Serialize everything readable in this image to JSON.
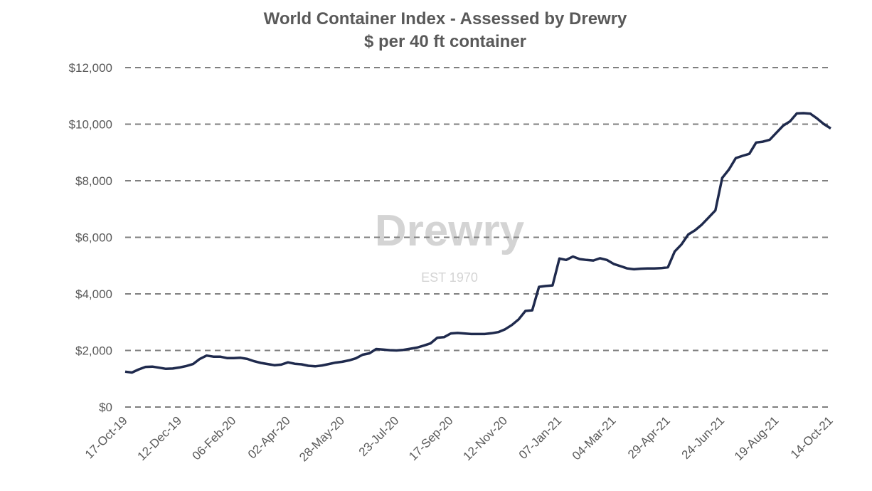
{
  "chart_data": {
    "type": "line",
    "title": "World Container Index - Assessed by Drewry",
    "subtitle": "$ per 40 ft container",
    "watermark": {
      "name": "Drewry",
      "est": "EST 1970"
    },
    "categories": [
      "17-Oct-19",
      null,
      null,
      null,
      null,
      null,
      null,
      null,
      "12-Dec-19",
      null,
      null,
      null,
      null,
      null,
      null,
      null,
      "06-Feb-20",
      null,
      null,
      null,
      null,
      null,
      null,
      null,
      "02-Apr-20",
      null,
      null,
      null,
      null,
      null,
      null,
      null,
      "28-May-20",
      null,
      null,
      null,
      null,
      null,
      null,
      null,
      "23-Jul-20",
      null,
      null,
      null,
      null,
      null,
      null,
      null,
      "17-Sep-20",
      null,
      null,
      null,
      null,
      null,
      null,
      null,
      "12-Nov-20",
      null,
      null,
      null,
      null,
      null,
      null,
      null,
      "07-Jan-21",
      null,
      null,
      null,
      null,
      null,
      null,
      null,
      "04-Mar-21",
      null,
      null,
      null,
      null,
      null,
      null,
      null,
      "29-Apr-21",
      null,
      null,
      null,
      null,
      null,
      null,
      null,
      "24-Jun-21",
      null,
      null,
      null,
      null,
      null,
      null,
      null,
      "19-Aug-21",
      null,
      null,
      null,
      null,
      null,
      null,
      null,
      "14-Oct-21"
    ],
    "series": [
      {
        "name": "World Container Index",
        "color": "#1f2a4d",
        "values": [
          1250,
          1220,
          1330,
          1420,
          1430,
          1390,
          1350,
          1360,
          1400,
          1450,
          1520,
          1700,
          1820,
          1780,
          1780,
          1730,
          1730,
          1740,
          1700,
          1620,
          1560,
          1520,
          1480,
          1500,
          1580,
          1530,
          1510,
          1460,
          1440,
          1470,
          1520,
          1570,
          1600,
          1650,
          1720,
          1850,
          1900,
          2050,
          2030,
          2010,
          2000,
          2020,
          2060,
          2100,
          2170,
          2250,
          2450,
          2470,
          2600,
          2620,
          2600,
          2580,
          2580,
          2580,
          2610,
          2650,
          2750,
          2900,
          3100,
          3400,
          3420,
          4250,
          4280,
          4300,
          5250,
          5200,
          5320,
          5230,
          5200,
          5180,
          5260,
          5200,
          5060,
          4980,
          4900,
          4870,
          4890,
          4900,
          4900,
          4910,
          4940,
          5500,
          5750,
          6100,
          6250,
          6450,
          6700,
          6950,
          8100,
          8400,
          8800,
          8880,
          8950,
          9350,
          9380,
          9450,
          9700,
          9950,
          10100,
          10380,
          10390,
          10370,
          10200,
          10000,
          9850
        ]
      }
    ],
    "ylim": [
      0,
      12000
    ],
    "yticks": [
      {
        "value": 0,
        "label": "$0"
      },
      {
        "value": 2000,
        "label": "$2,000"
      },
      {
        "value": 4000,
        "label": "$4,000"
      },
      {
        "value": 6000,
        "label": "$6,000"
      },
      {
        "value": 8000,
        "label": "$8,000"
      },
      {
        "value": 10000,
        "label": "$10,000"
      },
      {
        "value": 12000,
        "label": "$12,000"
      }
    ],
    "grid": true
  }
}
